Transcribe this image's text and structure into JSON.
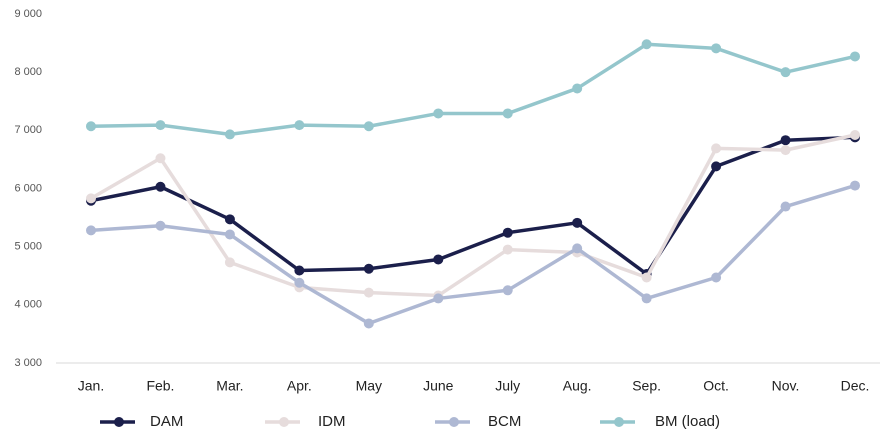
{
  "chart_data": {
    "type": "line",
    "categories": [
      "Jan.",
      "Feb.",
      "Mar.",
      "Apr.",
      "May",
      "June",
      "July",
      "Aug.",
      "Sep.",
      "Oct.",
      "Nov.",
      "Dec."
    ],
    "series": [
      {
        "name": "DAM",
        "color": "#1b1f4b",
        "values": [
          5790,
          6030,
          5470,
          4590,
          4620,
          4780,
          5240,
          5410,
          4530,
          6380,
          6830,
          6880
        ]
      },
      {
        "name": "IDM",
        "color": "#e6dcdc",
        "values": [
          5830,
          6520,
          4730,
          4300,
          4210,
          4160,
          4950,
          4900,
          4470,
          6690,
          6660,
          6920
        ]
      },
      {
        "name": "BCM",
        "color": "#aeb8d3",
        "values": [
          5280,
          5360,
          5210,
          4380,
          3680,
          4110,
          4250,
          4970,
          4110,
          4470,
          5690,
          6050
        ]
      },
      {
        "name": "BM (load)",
        "color": "#94c6cc",
        "values": [
          7070,
          7090,
          6930,
          7090,
          7070,
          7290,
          7290,
          7720,
          8480,
          8410,
          8000,
          8270
        ]
      }
    ],
    "ylim": [
      3000,
      9000
    ],
    "yticks": [
      {
        "value": 3000,
        "label": "3 000"
      },
      {
        "value": 4000,
        "label": "4 000"
      },
      {
        "value": 5000,
        "label": "5 000"
      },
      {
        "value": 6000,
        "label": "6 000"
      },
      {
        "value": 7000,
        "label": "7 000"
      },
      {
        "value": 8000,
        "label": "8 000"
      },
      {
        "value": 9000,
        "label": "9 000"
      }
    ],
    "legend": "bottom"
  }
}
